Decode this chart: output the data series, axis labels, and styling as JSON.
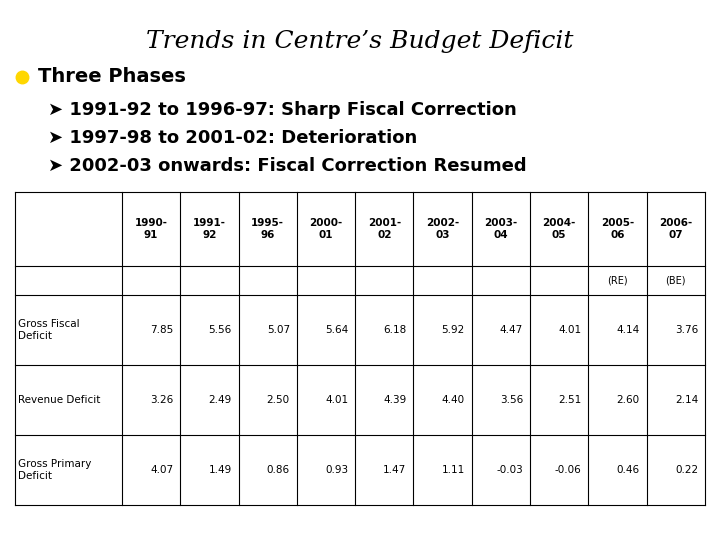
{
  "title": "Trends in Centre’s Budget Deficit",
  "bullet_color": "#FFD700",
  "bullet_text": "Three Phases",
  "sub_bullets": [
    "➤ 1991-92 to 1996-97: Sharp Fiscal Correction",
    "➤ 1997-98 to 2001-02: Deterioration",
    "➤ 2002-03 onwards: Fiscal Correction Resumed"
  ],
  "col_headers_line1": [
    "",
    "1990-",
    "1991-",
    "1995-",
    "2000-",
    "2001-",
    "2002-",
    "2003-",
    "2004-",
    "2005-",
    "2006-"
  ],
  "col_headers_line2": [
    "",
    "91",
    "92",
    "96",
    "01",
    "02",
    "03",
    "04",
    "05",
    "06",
    "07"
  ],
  "re_be_row": [
    "",
    "",
    "",
    "",
    "",
    "",
    "",
    "",
    "",
    "(RE)",
    "(BE)"
  ],
  "row_labels": [
    "Gross Fiscal\nDeficit",
    "Revenue Deficit",
    "Gross Primary\nDeficit"
  ],
  "table_data": [
    [
      "7.85",
      "5.56",
      "5.07",
      "5.64",
      "6.18",
      "5.92",
      "4.47",
      "4.01",
      "4.14",
      "3.76"
    ],
    [
      "3.26",
      "2.49",
      "2.50",
      "4.01",
      "4.39",
      "4.40",
      "3.56",
      "2.51",
      "2.60",
      "2.14"
    ],
    [
      "4.07",
      "1.49",
      "0.86",
      "0.93",
      "1.47",
      "1.11",
      "-0.03",
      "-0.06",
      "0.46",
      "0.22"
    ]
  ],
  "bg_color": "#FFFFFF",
  "title_color": "#000000",
  "text_color": "#000000",
  "table_font_size": 7.5,
  "title_font_size": 18,
  "bullet_font_size": 14,
  "sub_bullet_font_size": 13
}
